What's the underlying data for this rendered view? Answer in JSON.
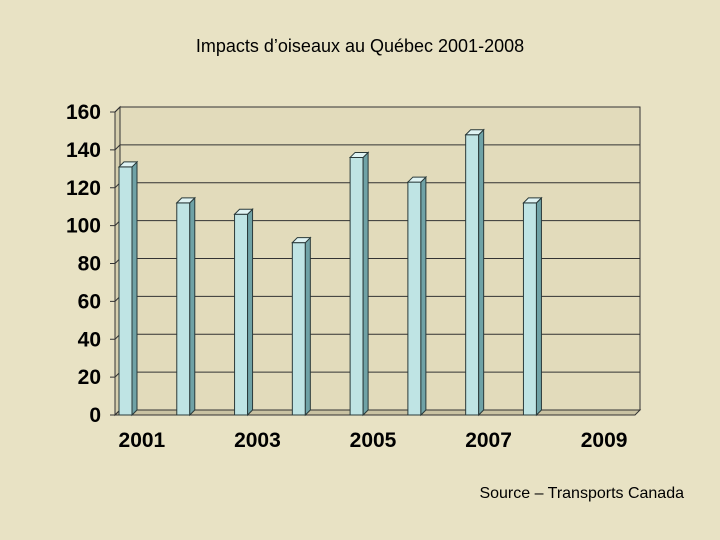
{
  "page": {
    "title": "Impacts d’oiseaux au Québec 2001-2008",
    "source": "Source – Transports Canada"
  },
  "chart_data": {
    "type": "bar",
    "title": "Impacts d’oiseaux au Québec 2001-2008",
    "categories": [
      "2001",
      "2002",
      "2003",
      "2004",
      "2005",
      "2006",
      "2007",
      "2008",
      "2009"
    ],
    "x_tick_labels": [
      "2001",
      "2003",
      "2005",
      "2007",
      "2009"
    ],
    "series": [
      {
        "name": "Impacts",
        "values": [
          131,
          112,
          106,
          91,
          136,
          123,
          148,
          112,
          null
        ]
      }
    ],
    "yticks": [
      0,
      20,
      40,
      60,
      80,
      100,
      120,
      140,
      160
    ],
    "ylim": [
      0,
      160
    ],
    "xlabel": "",
    "ylabel": "",
    "grid": true,
    "colors": {
      "bar_front": "#bfe4e4",
      "bar_side": "#6fa2a6",
      "bar_top": "#dff3f3",
      "wall": "#e2dbbb",
      "floor": "#c9c2a2",
      "gridline": "#333333"
    }
  }
}
